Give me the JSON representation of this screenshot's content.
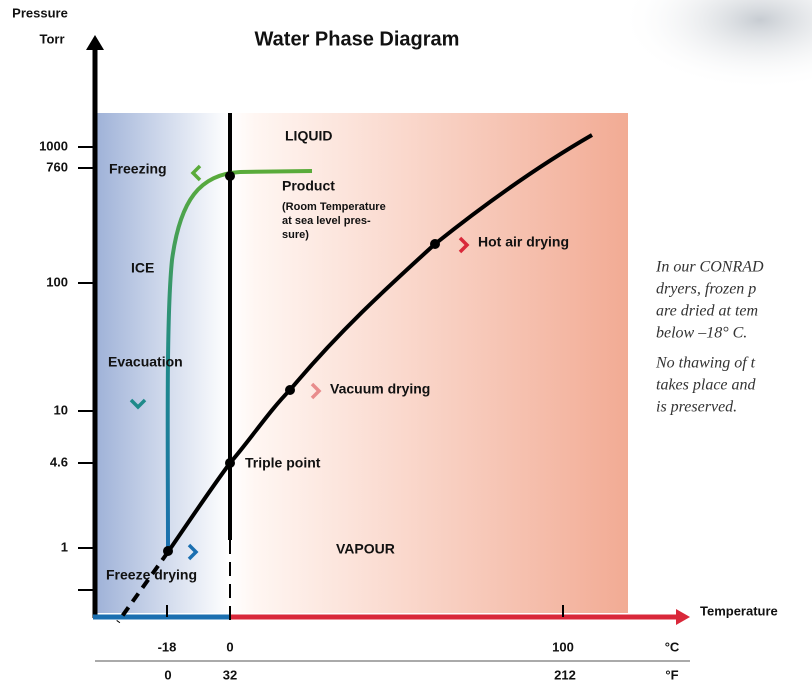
{
  "header": {
    "y_axis_title": "Pressure",
    "y_axis_unit": "Torr",
    "title": "Water Phase Diagram"
  },
  "axis": {
    "y_labels": [
      "1000",
      "760",
      "100",
      "10",
      "4.6",
      "1"
    ],
    "x_title": "Temperature",
    "celsius": [
      "-18",
      "0",
      "100"
    ],
    "celsius_unit": "°C",
    "fahrenheit": [
      "0",
      "32",
      "212"
    ],
    "fahrenheit_unit": "°F"
  },
  "regions": {
    "liquid": "LIQUID",
    "ice": "ICE",
    "vapour": "VAPOUR"
  },
  "labels": {
    "freezing": "Freezing",
    "product": "Product",
    "product_note": [
      "(Room Temperature",
      "at sea level pres-",
      "sure)"
    ],
    "hot_air": "Hot air drying",
    "evacuation": "Evacuation",
    "vacuum": "Vacuum drying",
    "triple": "Triple point",
    "freeze_drying": "Freeze drying"
  },
  "side_text": {
    "paragraph1": [
      "In our CONRAD",
      "dryers, frozen p",
      "are dried at tem",
      "below –18° C."
    ],
    "paragraph2": [
      "No thawing of t",
      "takes place and",
      "is preserved."
    ]
  }
}
